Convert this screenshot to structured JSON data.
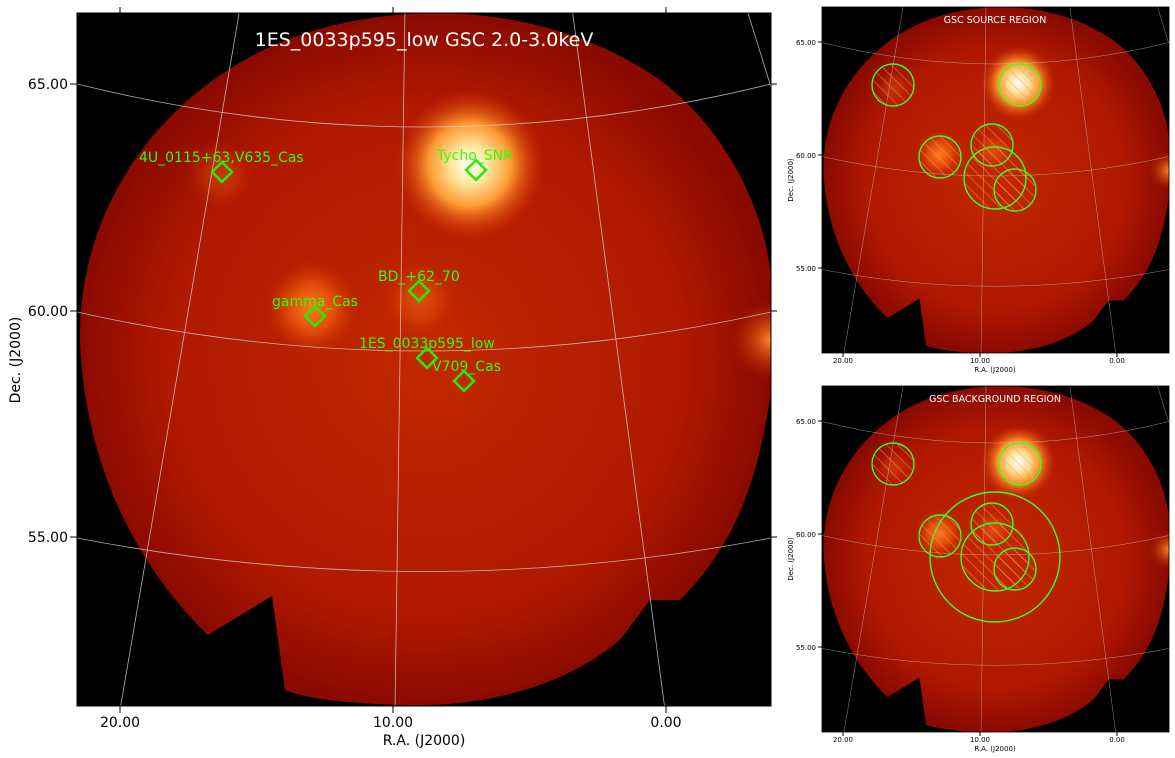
{
  "main": {
    "title": "1ES_0033p595_low GSC 2.0-3.0keV",
    "xlabel": "R.A. (J2000)",
    "ylabel": "Dec. (J2000)",
    "x_ticks": [
      "20.00",
      "10.00",
      "0.00"
    ],
    "y_ticks": [
      "65.00",
      "60.00",
      "55.00"
    ],
    "sources": [
      {
        "label": "4U_0115+63,V635_Cas"
      },
      {
        "label": "Tycho_SNR"
      },
      {
        "label": "BD_+62_70"
      },
      {
        "label": "gamma_Cas"
      },
      {
        "label": "1ES_0033p595_low"
      },
      {
        "label": "V709_Cas"
      }
    ]
  },
  "source_panel": {
    "title": "GSC SOURCE REGION",
    "xlabel": "R.A. (J2000)",
    "ylabel": "Dec. (J2000)",
    "x_ticks": [
      "20.00",
      "10.00",
      "0.00"
    ],
    "y_ticks": [
      "65.00",
      "60.00",
      "55.00"
    ]
  },
  "background_panel": {
    "title": "GSC BACKGROUND REGION",
    "xlabel": "R.A. (J2000)",
    "ylabel": "Dec. (J2000)",
    "x_ticks": [
      "20.00",
      "10.00",
      "0.00"
    ],
    "y_ticks": [
      "65.00",
      "60.00",
      "55.00"
    ]
  },
  "colors": {
    "marker": "#22ee00",
    "region": "#3dff1a",
    "background": "#000000",
    "map_base": "#b51a00"
  }
}
